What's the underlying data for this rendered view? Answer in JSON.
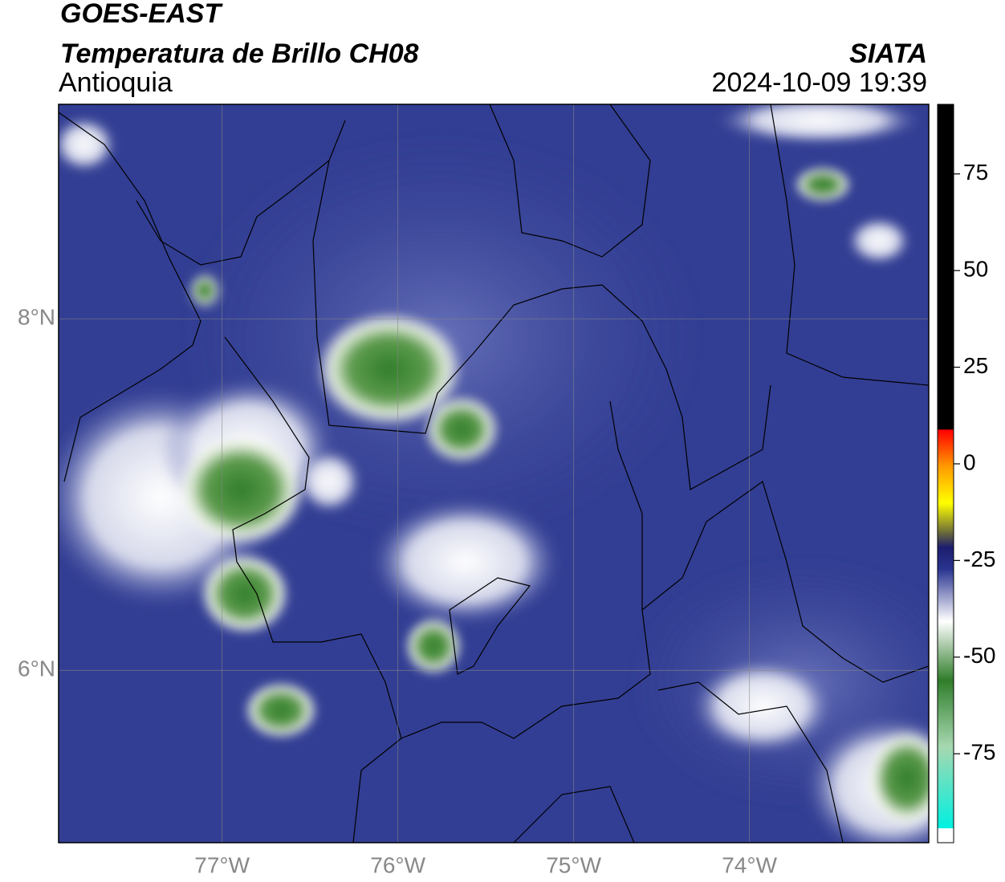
{
  "header": {
    "title": "GOES-EAST",
    "subtitle": "Temperatura de Brillo CH08",
    "region": "Antioquia",
    "source": "SIATA",
    "datetime": "2024-10-09 19:39"
  },
  "map": {
    "lon_range": [
      -77.93,
      -72.98
    ],
    "lat_range": [
      5.02,
      9.22
    ],
    "lon_ticks": [
      {
        "value": -77,
        "label": "77°W"
      },
      {
        "value": -76,
        "label": "76°W"
      },
      {
        "value": -75,
        "label": "75°W"
      },
      {
        "value": -74,
        "label": "74°W"
      }
    ],
    "lat_ticks": [
      {
        "value": 8,
        "label": "8°N"
      },
      {
        "value": 6,
        "label": "6°N"
      }
    ]
  },
  "colorbar": {
    "range": [
      -98,
      93
    ],
    "ticks": [
      75,
      50,
      25,
      0,
      -25,
      -50,
      -75
    ]
  }
}
